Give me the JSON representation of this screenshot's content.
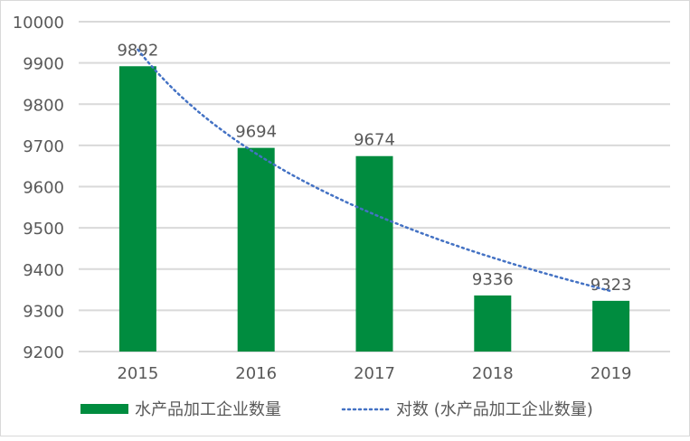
{
  "chart_data": {
    "type": "bar",
    "title": "",
    "xlabel": "",
    "ylabel": "",
    "categories": [
      "2015",
      "2016",
      "2017",
      "2018",
      "2019"
    ],
    "series": [
      {
        "name": "水产品加工企业数量",
        "type": "bar",
        "values": [
          9892,
          9694,
          9674,
          9336,
          9323
        ],
        "color": "#008c3f"
      },
      {
        "name": "对数 (水产品加工企业数量)",
        "type": "line",
        "style": "dotted",
        "trendline": "logarithmic",
        "color": "#4472c4"
      }
    ],
    "ylim": [
      9200,
      10000
    ],
    "yticks": [
      9200,
      9300,
      9400,
      9500,
      9600,
      9700,
      9800,
      9900,
      10000
    ],
    "grid": true,
    "legend_position": "bottom",
    "data_labels": true
  },
  "legend": {
    "bar_label": "水产品加工企业数量",
    "trend_label": "对数 (水产品加工企业数量)"
  }
}
